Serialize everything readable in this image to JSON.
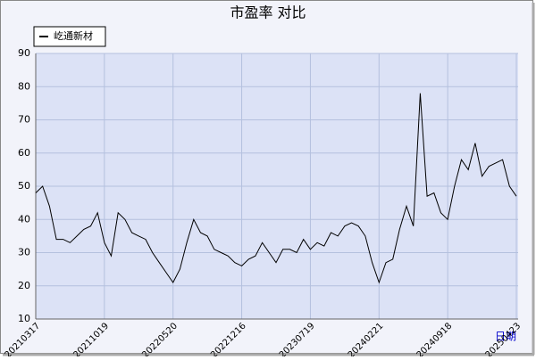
{
  "chart_data": {
    "type": "line",
    "title": "市盈率 对比",
    "x_label": "日期",
    "categories": [
      "20210317",
      null,
      null,
      null,
      null,
      null,
      null,
      null,
      null,
      null,
      "20211019",
      null,
      null,
      null,
      null,
      null,
      null,
      null,
      null,
      null,
      "20220520",
      null,
      null,
      null,
      null,
      null,
      null,
      null,
      null,
      null,
      "20221216",
      null,
      null,
      null,
      null,
      null,
      null,
      null,
      null,
      null,
      "20230719",
      null,
      null,
      null,
      null,
      null,
      null,
      null,
      null,
      null,
      "20240221",
      null,
      null,
      null,
      null,
      null,
      null,
      null,
      null,
      null,
      "20240918",
      null,
      null,
      null,
      null,
      null,
      null,
      null,
      null,
      null,
      "20250423"
    ],
    "series": [
      {
        "name": "屹通新材",
        "color": "#000000",
        "values": [
          48,
          50,
          44,
          34,
          34,
          33,
          35,
          37,
          38,
          42,
          33,
          29,
          42,
          40,
          36,
          35,
          34,
          30,
          27,
          24,
          21,
          25,
          33,
          40,
          36,
          35,
          31,
          30,
          29,
          27,
          26,
          28,
          29,
          33,
          30,
          27,
          31,
          31,
          30,
          34,
          31,
          33,
          32,
          36,
          35,
          38,
          39,
          38,
          35,
          27,
          21,
          27,
          28,
          37,
          44,
          38,
          78,
          47,
          48,
          42,
          40,
          50,
          58,
          55,
          63,
          53,
          56,
          57,
          58,
          50,
          47
        ]
      }
    ],
    "ylim": [
      10,
      90
    ],
    "yticks": [
      10,
      20,
      30,
      40,
      50,
      60,
      70,
      80,
      90
    ],
    "grid": true,
    "legend": "top-left"
  }
}
